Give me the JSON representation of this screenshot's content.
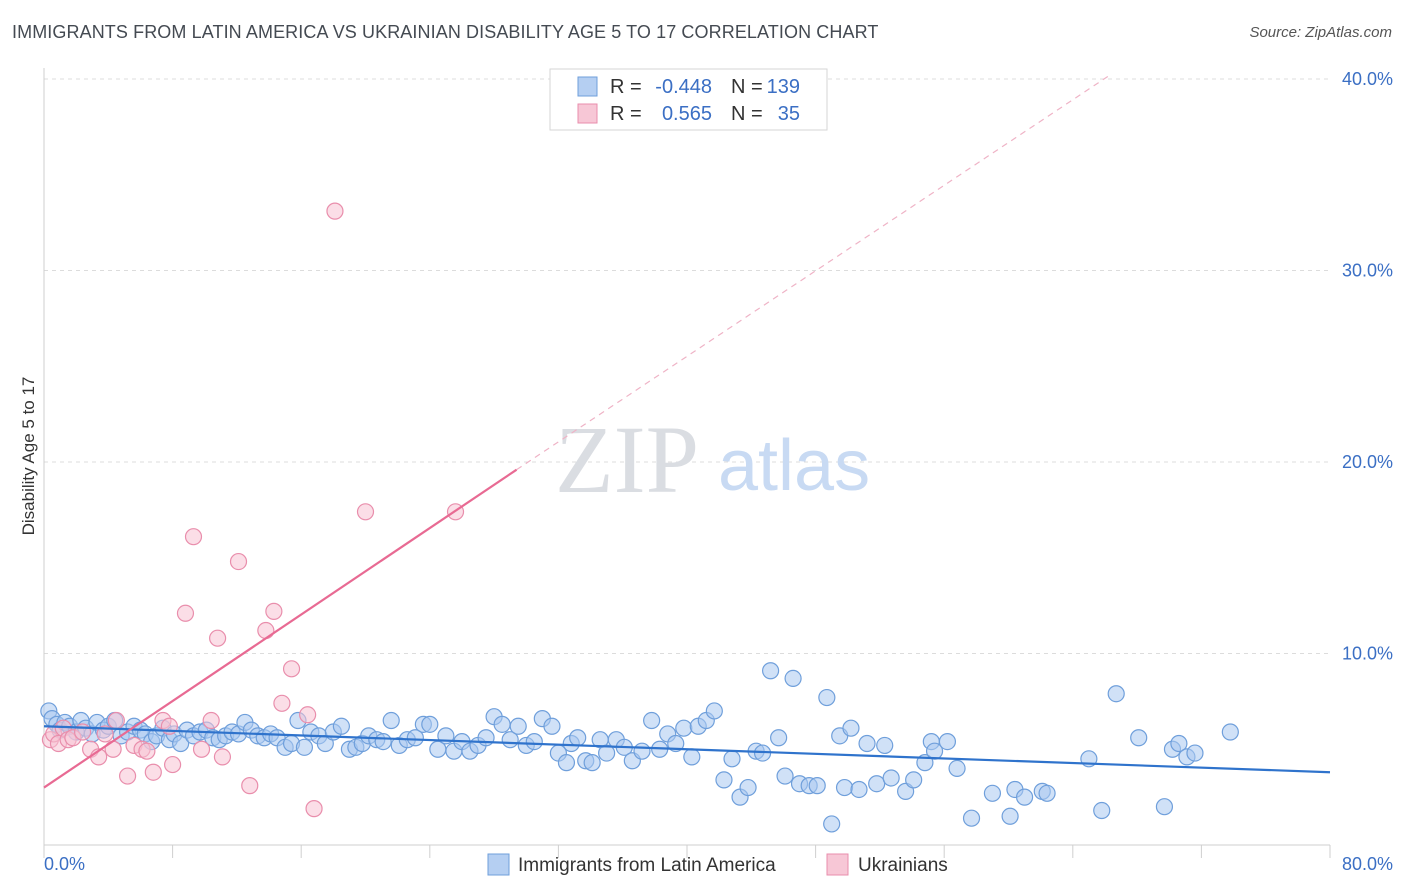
{
  "title": "IMMIGRANTS FROM LATIN AMERICA VS UKRAINIAN DISABILITY AGE 5 TO 17 CORRELATION CHART",
  "source": "Source: ZipAtlas.com",
  "watermark": {
    "zip": "ZIP",
    "atlas": "atlas"
  },
  "colors": {
    "blue_fill": "#a9c8f0",
    "blue_stroke": "#6f9fdb",
    "blue_line": "#2f73cc",
    "pink_fill": "#f7c3d4",
    "pink_stroke": "#e98eac",
    "pink_line": "#e86a93",
    "axis_label": "#3b6fc4",
    "grid": "#dcdcdc"
  },
  "legend": {
    "rows": [
      {
        "r_label": "R =",
        "r_value": "-0.448",
        "n_label": "N =",
        "n_value": "139"
      },
      {
        "r_label": "R =",
        "r_value": "0.565",
        "n_label": "N =",
        "n_value": "35"
      }
    ]
  },
  "chart_data": {
    "type": "scatter",
    "title": "IMMIGRANTS FROM LATIN AMERICA VS UKRAINIAN DISABILITY AGE 5 TO 17 CORRELATION CHART",
    "xlabel": "",
    "ylabel": "Disability Age 5 to 17",
    "xlim": [
      0,
      80
    ],
    "ylim": [
      0,
      40
    ],
    "x_tick_labels": {
      "min": "0.0%",
      "max": "80.0%"
    },
    "y_ticks": [
      10,
      20,
      30,
      40
    ],
    "y_tick_labels": [
      "10.0%",
      "20.0%",
      "30.0%",
      "40.0%"
    ],
    "series": [
      {
        "name": "Immigrants from Latin America",
        "R": -0.448,
        "N": 139,
        "trend": {
          "x": [
            0,
            80
          ],
          "y": [
            6.2,
            3.8
          ]
        },
        "points": [
          [
            0.3,
            7.0
          ],
          [
            0.5,
            6.6
          ],
          [
            0.8,
            6.3
          ],
          [
            1.0,
            6.0
          ],
          [
            1.3,
            6.4
          ],
          [
            1.6,
            6.2
          ],
          [
            2.0,
            5.9
          ],
          [
            2.3,
            6.5
          ],
          [
            2.6,
            6.1
          ],
          [
            3.0,
            5.8
          ],
          [
            3.3,
            6.4
          ],
          [
            3.7,
            6.0
          ],
          [
            4.0,
            6.2
          ],
          [
            4.4,
            6.5
          ],
          [
            4.8,
            5.7
          ],
          [
            5.2,
            5.9
          ],
          [
            5.6,
            6.2
          ],
          [
            6.0,
            6.0
          ],
          [
            6.3,
            5.8
          ],
          [
            6.7,
            5.4
          ],
          [
            7.0,
            5.7
          ],
          [
            7.4,
            6.1
          ],
          [
            7.8,
            5.5
          ],
          [
            8.1,
            5.8
          ],
          [
            8.5,
            5.3
          ],
          [
            8.9,
            6.0
          ],
          [
            9.3,
            5.7
          ],
          [
            9.7,
            5.9
          ],
          [
            10.1,
            6.0
          ],
          [
            10.5,
            5.6
          ],
          [
            10.9,
            5.5
          ],
          [
            11.3,
            5.7
          ],
          [
            11.7,
            5.9
          ],
          [
            12.1,
            5.8
          ],
          [
            12.5,
            6.4
          ],
          [
            12.9,
            6.0
          ],
          [
            13.3,
            5.7
          ],
          [
            13.7,
            5.6
          ],
          [
            14.1,
            5.8
          ],
          [
            14.5,
            5.6
          ],
          [
            15.0,
            5.1
          ],
          [
            15.4,
            5.3
          ],
          [
            15.8,
            6.5
          ],
          [
            16.2,
            5.1
          ],
          [
            16.6,
            5.9
          ],
          [
            17.1,
            5.7
          ],
          [
            17.5,
            5.3
          ],
          [
            18.0,
            5.9
          ],
          [
            18.5,
            6.2
          ],
          [
            19.0,
            5.0
          ],
          [
            19.4,
            5.1
          ],
          [
            19.8,
            5.3
          ],
          [
            20.2,
            5.7
          ],
          [
            20.7,
            5.5
          ],
          [
            21.1,
            5.4
          ],
          [
            21.6,
            6.5
          ],
          [
            22.1,
            5.2
          ],
          [
            22.6,
            5.5
          ],
          [
            23.1,
            5.6
          ],
          [
            23.6,
            6.3
          ],
          [
            24.0,
            6.3
          ],
          [
            24.5,
            5.0
          ],
          [
            25.0,
            5.7
          ],
          [
            25.5,
            4.9
          ],
          [
            26.0,
            5.4
          ],
          [
            26.5,
            4.9
          ],
          [
            27.0,
            5.2
          ],
          [
            27.5,
            5.6
          ],
          [
            28.0,
            6.7
          ],
          [
            28.5,
            6.3
          ],
          [
            29.0,
            5.5
          ],
          [
            29.5,
            6.2
          ],
          [
            30.0,
            5.2
          ],
          [
            30.5,
            5.4
          ],
          [
            31.0,
            6.6
          ],
          [
            31.6,
            6.2
          ],
          [
            32.0,
            4.8
          ],
          [
            32.5,
            4.3
          ],
          [
            32.8,
            5.3
          ],
          [
            33.2,
            5.6
          ],
          [
            33.7,
            4.4
          ],
          [
            34.1,
            4.3
          ],
          [
            34.6,
            5.5
          ],
          [
            35.0,
            4.8
          ],
          [
            35.6,
            5.5
          ],
          [
            36.1,
            5.1
          ],
          [
            36.6,
            4.4
          ],
          [
            37.2,
            4.9
          ],
          [
            37.8,
            6.5
          ],
          [
            38.3,
            5.0
          ],
          [
            38.8,
            5.8
          ],
          [
            39.3,
            5.3
          ],
          [
            39.8,
            6.1
          ],
          [
            40.3,
            4.6
          ],
          [
            40.7,
            6.2
          ],
          [
            41.2,
            6.5
          ],
          [
            41.7,
            7.0
          ],
          [
            42.3,
            3.4
          ],
          [
            42.8,
            4.5
          ],
          [
            43.3,
            2.5
          ],
          [
            43.8,
            3.0
          ],
          [
            44.3,
            4.9
          ],
          [
            44.7,
            4.8
          ],
          [
            45.2,
            9.1
          ],
          [
            45.7,
            5.6
          ],
          [
            46.1,
            3.6
          ],
          [
            46.6,
            8.7
          ],
          [
            47.0,
            3.2
          ],
          [
            47.6,
            3.1
          ],
          [
            48.1,
            3.1
          ],
          [
            48.7,
            7.7
          ],
          [
            49.0,
            1.1
          ],
          [
            49.5,
            5.7
          ],
          [
            49.8,
            3.0
          ],
          [
            50.2,
            6.1
          ],
          [
            50.7,
            2.9
          ],
          [
            51.2,
            5.3
          ],
          [
            51.8,
            3.2
          ],
          [
            52.3,
            5.2
          ],
          [
            52.7,
            3.5
          ],
          [
            53.6,
            2.8
          ],
          [
            54.1,
            3.4
          ],
          [
            54.8,
            4.3
          ],
          [
            55.2,
            5.4
          ],
          [
            55.4,
            4.9
          ],
          [
            56.2,
            5.4
          ],
          [
            56.8,
            4.0
          ],
          [
            57.7,
            1.4
          ],
          [
            59.0,
            2.7
          ],
          [
            60.1,
            1.5
          ],
          [
            60.4,
            2.9
          ],
          [
            61.0,
            2.5
          ],
          [
            62.1,
            2.8
          ],
          [
            62.4,
            2.7
          ],
          [
            65.0,
            4.5
          ],
          [
            65.8,
            1.8
          ],
          [
            66.7,
            7.9
          ],
          [
            68.1,
            5.6
          ],
          [
            69.7,
            2.0
          ],
          [
            70.2,
            5.0
          ],
          [
            70.6,
            5.3
          ],
          [
            71.1,
            4.6
          ],
          [
            71.6,
            4.8
          ],
          [
            73.8,
            5.9
          ]
        ]
      },
      {
        "name": "Ukrainians",
        "R": 0.565,
        "N": 35,
        "trend": {
          "x": [
            0,
            29.4
          ],
          "y": [
            3.0,
            19.6
          ]
        },
        "trend_extension": {
          "x": [
            29.4,
            66.3
          ],
          "y": [
            19.6,
            40.2
          ]
        },
        "points": [
          [
            0.4,
            5.5
          ],
          [
            0.6,
            5.8
          ],
          [
            0.9,
            5.3
          ],
          [
            1.2,
            6.1
          ],
          [
            1.5,
            5.5
          ],
          [
            1.8,
            5.6
          ],
          [
            2.4,
            5.9
          ],
          [
            2.9,
            5.0
          ],
          [
            3.4,
            4.6
          ],
          [
            3.8,
            5.8
          ],
          [
            4.3,
            5.0
          ],
          [
            4.5,
            6.5
          ],
          [
            5.2,
            3.6
          ],
          [
            5.6,
            5.2
          ],
          [
            6.1,
            5.0
          ],
          [
            6.4,
            4.9
          ],
          [
            6.8,
            3.8
          ],
          [
            7.4,
            6.5
          ],
          [
            7.8,
            6.2
          ],
          [
            8.0,
            4.2
          ],
          [
            8.8,
            12.1
          ],
          [
            9.3,
            16.1
          ],
          [
            9.8,
            5.0
          ],
          [
            10.4,
            6.5
          ],
          [
            10.8,
            10.8
          ],
          [
            11.1,
            4.6
          ],
          [
            12.1,
            14.8
          ],
          [
            12.8,
            3.1
          ],
          [
            13.8,
            11.2
          ],
          [
            14.3,
            12.2
          ],
          [
            15.4,
            9.2
          ],
          [
            14.8,
            7.4
          ],
          [
            16.4,
            6.8
          ],
          [
            16.8,
            1.9
          ],
          [
            18.1,
            33.1
          ],
          [
            20.0,
            17.4
          ],
          [
            25.6,
            17.4
          ]
        ]
      }
    ]
  },
  "bottom_legend": [
    {
      "label": "Immigrants from Latin America"
    },
    {
      "label": "Ukrainians"
    }
  ]
}
